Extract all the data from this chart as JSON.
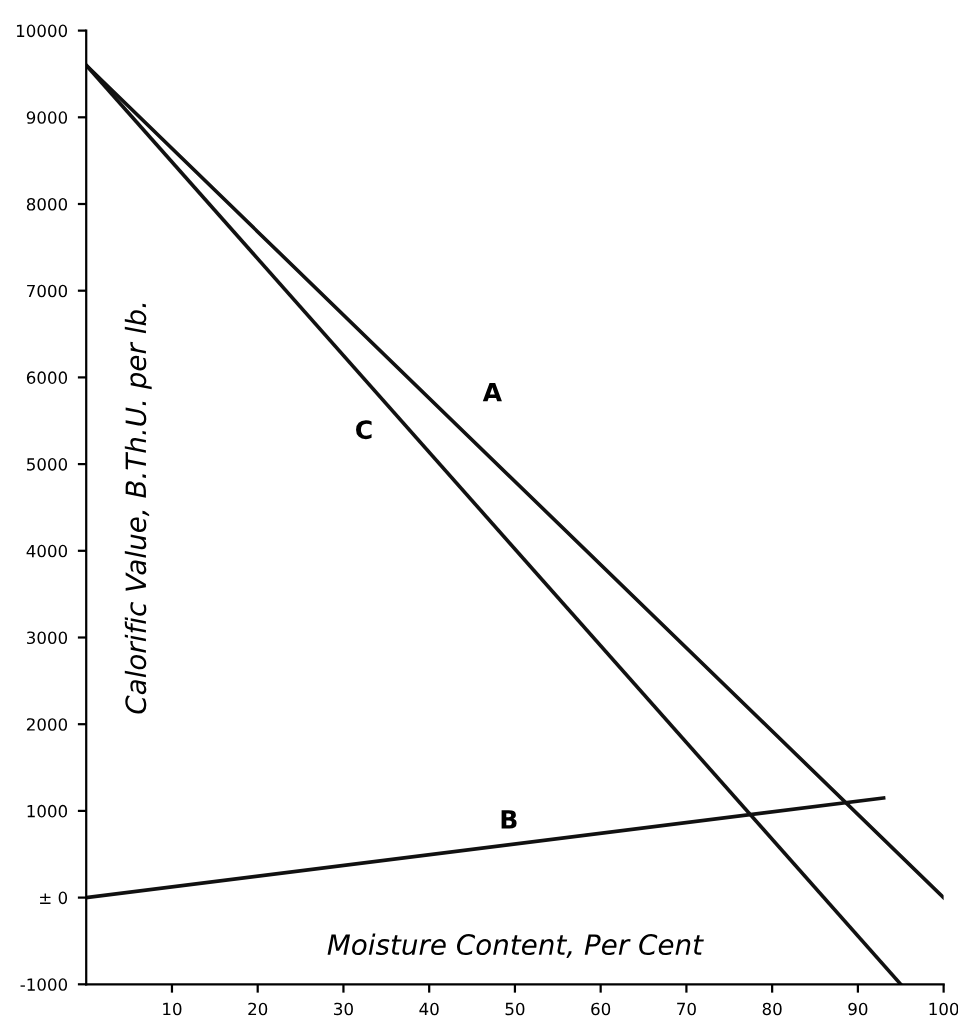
{
  "chart_data": {
    "type": "line",
    "xlabel": "Moisture Content, Per Cent",
    "ylabel": "Calorific Value, B.Th.U. per lb.",
    "series": [
      {
        "name": "A",
        "color": "#111111",
        "x": [
          0,
          100
        ],
        "values": [
          9600,
          0
        ]
      },
      {
        "name": "C",
        "color": "#111111",
        "x": [
          0,
          95
        ],
        "values": [
          9600,
          -1000
        ]
      },
      {
        "name": "B",
        "color": "#111111",
        "x": [
          0,
          93
        ],
        "values": [
          0,
          1150
        ]
      }
    ],
    "xlim": [
      0,
      100
    ],
    "xticks": [
      10,
      20,
      30,
      40,
      50,
      60,
      70,
      80,
      90,
      100
    ],
    "ylim": [
      -1000,
      10000
    ],
    "yticks": [
      -1000,
      {
        "value": 0,
        "label": "± 0"
      },
      1000,
      2000,
      3000,
      4000,
      5000,
      6000,
      7000,
      8000,
      9000,
      10000
    ],
    "grid": false,
    "legend": false,
    "marker": "none",
    "line_style": "solid"
  }
}
